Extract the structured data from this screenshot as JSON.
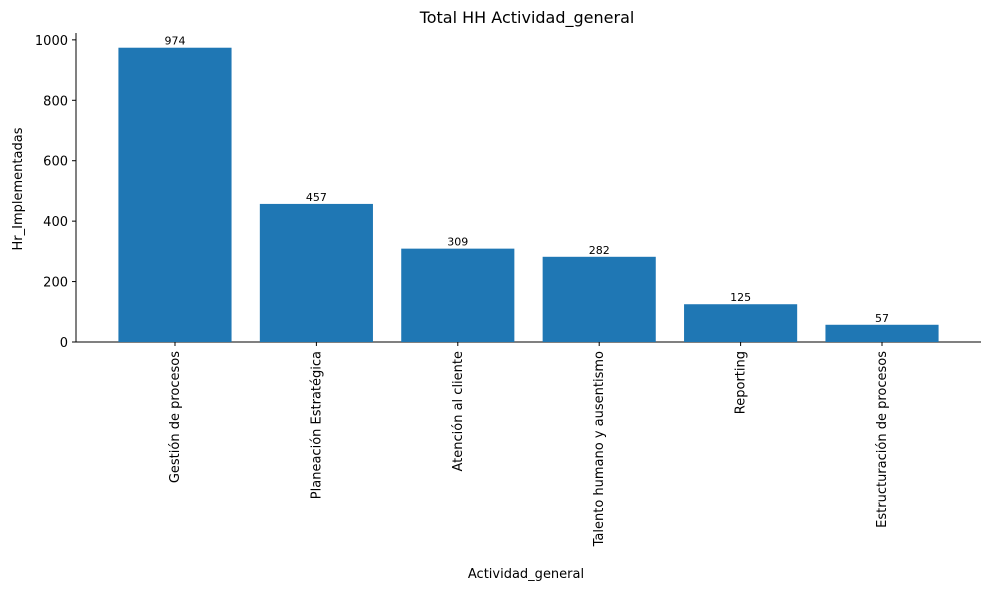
{
  "chart_data": {
    "type": "bar",
    "title": "Total HH Actividad_general",
    "xlabel": "Actividad_general",
    "ylabel": "Hr_Implementadas",
    "categories": [
      "Gestión de procesos",
      "Planeación Estratégica",
      "Atención al cliente",
      "Talento humano y ausentismo",
      "Reporting",
      "Estructuración de procesos"
    ],
    "values": [
      974,
      457,
      309,
      282,
      125,
      57
    ],
    "data_labels": [
      "974",
      "457",
      "309",
      "282",
      "125",
      "57"
    ],
    "yticks": [
      0,
      200,
      400,
      600,
      800,
      1000
    ],
    "ytick_labels": [
      "0",
      "200",
      "400",
      "600",
      "800",
      "1000"
    ],
    "ylim": [
      0,
      1022.7
    ],
    "grid": false,
    "bar_color": "#1f77b4"
  }
}
